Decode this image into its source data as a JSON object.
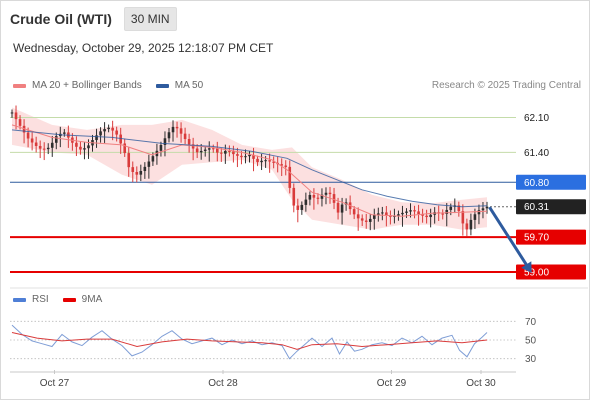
{
  "header": {
    "title": "Crude Oil (WTI)",
    "interval": "30 MIN"
  },
  "subtitle": "Wednesday, October 29, 2025 12:18:07 PM CET",
  "source": "Research © 2025 Trading Central",
  "colors": {
    "ma20": "#f08080",
    "ma50": "#2e5b9e",
    "band_fill": "#fbdada",
    "bull": "#2e2e2e",
    "bear": "#d93b3b",
    "target_green": "#c4dcaa",
    "blue_line": "#2e5b9e",
    "red_line": "#e60000",
    "blue_tag": "#2b6fe0",
    "price_tag": "#222222",
    "red_tag": "#e60000",
    "arrow": "#2e5b9e",
    "rsi": "#7f9ed6",
    "rsi_ma": "#d93b3b"
  },
  "main_legend": [
    {
      "label": "MA 20 + Bollinger Bands",
      "color": "#f08080"
    },
    {
      "label": "MA 50",
      "color": "#2e5b9e"
    }
  ],
  "rsi_legend": [
    {
      "label": "RSI",
      "color": "#4f7fd6"
    },
    {
      "label": "9MA",
      "color": "#e60000"
    }
  ],
  "chart_data": {
    "type": "candlestick",
    "y_range": [
      58.8,
      62.45
    ],
    "x_range": [
      0,
      100
    ],
    "x_ticks": [
      {
        "label": "Oct 27",
        "x": 8.5
      },
      {
        "label": "Oct 28",
        "x": 42.2
      },
      {
        "label": "Oct 29",
        "x": 75.9
      },
      {
        "label": "Oct 30",
        "x": 93.8
      }
    ],
    "levels": [
      {
        "value": 62.1,
        "label": "62.10",
        "style": "green"
      },
      {
        "value": 61.4,
        "label": "61.40",
        "style": "green"
      },
      {
        "value": 60.8,
        "label": "60.80",
        "style": "blue"
      },
      {
        "value": 60.31,
        "label": "60.31",
        "style": "price"
      },
      {
        "value": 59.7,
        "label": "59.70",
        "style": "red"
      },
      {
        "value": 59.0,
        "label": "59.00",
        "style": "red"
      }
    ],
    "close_path": [
      [
        0,
        62.2
      ],
      [
        1.5,
        61.95
      ],
      [
        3,
        61.7
      ],
      [
        4.5,
        61.55
      ],
      [
        6,
        61.45
      ],
      [
        7.5,
        61.5
      ],
      [
        9,
        61.75
      ],
      [
        10.5,
        61.8
      ],
      [
        12,
        61.6
      ],
      [
        13.5,
        61.45
      ],
      [
        15,
        61.5
      ],
      [
        16.5,
        61.7
      ],
      [
        18,
        61.85
      ],
      [
        19.5,
        61.9
      ],
      [
        21,
        61.75
      ],
      [
        22.5,
        61.4
      ],
      [
        23.5,
        61.05
      ],
      [
        25,
        60.95
      ],
      [
        26.5,
        61.1
      ],
      [
        28,
        61.3
      ],
      [
        29.5,
        61.5
      ],
      [
        31,
        61.75
      ],
      [
        32.5,
        61.95
      ],
      [
        34,
        61.75
      ],
      [
        35.5,
        61.55
      ],
      [
        37,
        61.4
      ],
      [
        38.5,
        61.45
      ],
      [
        40,
        61.5
      ],
      [
        41.5,
        61.35
      ],
      [
        43,
        61.45
      ],
      [
        44.5,
        61.35
      ],
      [
        46,
        61.3
      ],
      [
        47.5,
        61.35
      ],
      [
        49,
        61.2
      ],
      [
        50.5,
        61.25
      ],
      [
        52,
        61.2
      ],
      [
        53.5,
        61.15
      ],
      [
        55,
        61.1
      ],
      [
        55.8,
        60.5
      ],
      [
        56.8,
        60.2
      ],
      [
        58,
        60.35
      ],
      [
        59.5,
        60.55
      ],
      [
        61,
        60.45
      ],
      [
        62.5,
        60.6
      ],
      [
        64,
        60.55
      ],
      [
        65,
        60.15
      ],
      [
        66.5,
        60.45
      ],
      [
        68,
        60.2
      ],
      [
        69.5,
        60.05
      ],
      [
        71,
        60.0
      ],
      [
        72.5,
        60.15
      ],
      [
        74,
        60.2
      ],
      [
        75.5,
        60.1
      ],
      [
        77,
        60.15
      ],
      [
        78.5,
        60.2
      ],
      [
        80,
        60.25
      ],
      [
        81.5,
        60.15
      ],
      [
        83,
        60.1
      ],
      [
        84.5,
        60.2
      ],
      [
        86,
        60.15
      ],
      [
        87.5,
        60.3
      ],
      [
        89,
        60.35
      ],
      [
        90,
        60.0
      ],
      [
        91,
        59.85
      ],
      [
        92,
        60.1
      ],
      [
        93.5,
        60.25
      ],
      [
        95,
        60.31
      ]
    ],
    "ma50": [
      [
        0,
        61.85
      ],
      [
        10,
        61.75
      ],
      [
        20,
        61.7
      ],
      [
        30,
        61.58
      ],
      [
        40,
        61.52
      ],
      [
        48,
        61.42
      ],
      [
        55,
        61.28
      ],
      [
        60,
        61.05
      ],
      [
        65,
        60.85
      ],
      [
        70,
        60.65
      ],
      [
        75,
        60.52
      ],
      [
        80,
        60.42
      ],
      [
        85,
        60.35
      ],
      [
        90,
        60.31
      ],
      [
        95,
        60.33
      ]
    ],
    "ma20": [
      [
        0,
        61.95
      ],
      [
        8,
        61.7
      ],
      [
        15,
        61.6
      ],
      [
        22,
        61.55
      ],
      [
        28,
        61.35
      ],
      [
        34,
        61.55
      ],
      [
        40,
        61.5
      ],
      [
        46,
        61.4
      ],
      [
        52,
        61.25
      ],
      [
        55,
        61.05
      ],
      [
        60,
        60.6
      ],
      [
        66,
        60.4
      ],
      [
        72,
        60.15
      ],
      [
        78,
        60.12
      ],
      [
        84,
        60.18
      ],
      [
        90,
        60.2
      ],
      [
        95,
        60.22
      ]
    ],
    "band_upper": [
      [
        0,
        62.3
      ],
      [
        8,
        61.95
      ],
      [
        15,
        61.85
      ],
      [
        22,
        61.95
      ],
      [
        28,
        61.95
      ],
      [
        34,
        62.05
      ],
      [
        40,
        61.85
      ],
      [
        46,
        61.55
      ],
      [
        52,
        61.45
      ],
      [
        56,
        61.5
      ],
      [
        60,
        61.1
      ],
      [
        66,
        60.85
      ],
      [
        72,
        60.55
      ],
      [
        78,
        60.4
      ],
      [
        84,
        60.38
      ],
      [
        90,
        60.45
      ],
      [
        95,
        60.5
      ]
    ],
    "band_lower": [
      [
        0,
        61.55
      ],
      [
        8,
        61.4
      ],
      [
        15,
        61.35
      ],
      [
        22,
        60.95
      ],
      [
        28,
        60.75
      ],
      [
        34,
        61.15
      ],
      [
        40,
        61.2
      ],
      [
        46,
        61.25
      ],
      [
        52,
        61.05
      ],
      [
        56,
        60.45
      ],
      [
        60,
        60.05
      ],
      [
        66,
        59.95
      ],
      [
        72,
        59.85
      ],
      [
        78,
        59.95
      ],
      [
        84,
        59.95
      ],
      [
        90,
        59.85
      ],
      [
        95,
        59.9
      ]
    ],
    "forecast_arrow": {
      "from": [
        95.5,
        60.3
      ],
      "to": [
        103.5,
        59.05
      ]
    },
    "rsi": {
      "y_range": [
        20,
        80
      ],
      "levels": [
        70,
        50,
        30
      ],
      "level_labels": [
        "70",
        "50",
        "30"
      ],
      "rsi_path": [
        [
          0,
          66
        ],
        [
          2,
          56
        ],
        [
          4,
          49
        ],
        [
          6,
          46
        ],
        [
          8,
          43
        ],
        [
          10,
          56
        ],
        [
          12,
          48
        ],
        [
          14,
          44
        ],
        [
          16,
          53
        ],
        [
          18,
          60
        ],
        [
          20,
          51
        ],
        [
          22,
          44
        ],
        [
          24,
          33
        ],
        [
          26,
          37
        ],
        [
          28,
          45
        ],
        [
          30,
          54
        ],
        [
          32,
          60
        ],
        [
          34,
          51
        ],
        [
          36,
          46
        ],
        [
          38,
          49
        ],
        [
          40,
          52
        ],
        [
          42,
          45
        ],
        [
          44,
          50
        ],
        [
          46,
          46
        ],
        [
          48,
          49
        ],
        [
          50,
          45
        ],
        [
          52,
          47
        ],
        [
          54,
          44
        ],
        [
          55.5,
          30
        ],
        [
          57,
          38
        ],
        [
          58.5,
          45
        ],
        [
          60,
          52
        ],
        [
          62,
          43
        ],
        [
          64,
          52
        ],
        [
          65.5,
          35
        ],
        [
          67,
          48
        ],
        [
          68.5,
          38
        ],
        [
          70,
          40
        ],
        [
          72,
          45
        ],
        [
          74,
          47
        ],
        [
          76,
          44
        ],
        [
          78,
          52
        ],
        [
          80,
          47
        ],
        [
          82,
          54
        ],
        [
          84,
          45
        ],
        [
          86,
          52
        ],
        [
          88,
          55
        ],
        [
          89.5,
          39
        ],
        [
          91,
          32
        ],
        [
          92.5,
          46
        ],
        [
          94,
          53
        ],
        [
          95,
          58
        ]
      ],
      "ma_path": [
        [
          0,
          58
        ],
        [
          5,
          52
        ],
        [
          10,
          49
        ],
        [
          15,
          51
        ],
        [
          20,
          51
        ],
        [
          25,
          43
        ],
        [
          30,
          48
        ],
        [
          35,
          51
        ],
        [
          40,
          49
        ],
        [
          45,
          48
        ],
        [
          50,
          47
        ],
        [
          54,
          45
        ],
        [
          57,
          40
        ],
        [
          60,
          45
        ],
        [
          65,
          46
        ],
        [
          70,
          43
        ],
        [
          75,
          45
        ],
        [
          80,
          47
        ],
        [
          85,
          49
        ],
        [
          90,
          47
        ],
        [
          95,
          50
        ]
      ]
    }
  }
}
